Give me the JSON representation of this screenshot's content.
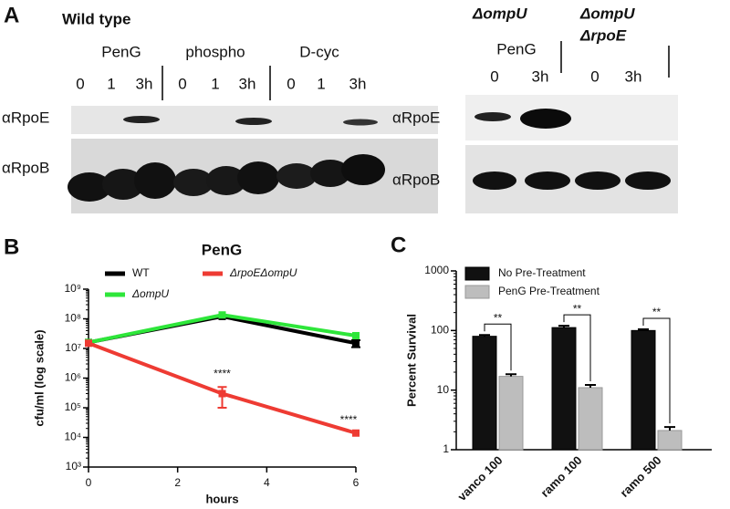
{
  "panel_a": {
    "label": "A",
    "title": "Wild type",
    "treatments": [
      "PenG",
      "phospho",
      "D-cyc"
    ],
    "timepoints": [
      [
        "0",
        "1",
        "3h"
      ],
      [
        "0",
        "1",
        "3h"
      ],
      [
        "0",
        "1",
        "3h"
      ]
    ],
    "rows": [
      "αRpoE",
      "αRpoB"
    ],
    "right_strains": [
      "ΔompU",
      "ΔompU",
      "ΔrpoE"
    ],
    "right_treatment": "PenG",
    "right_timepoints": [
      [
        "0",
        "3h"
      ],
      [
        "0",
        "3h"
      ]
    ],
    "right_rows": [
      "αRpoE",
      "αRpoB"
    ]
  },
  "chart_data": [
    {
      "type": "line",
      "label": "B",
      "title": "PenG",
      "xlabel": "hours",
      "ylabel": "cfu/ml (log scale)",
      "x": [
        0,
        3,
        6
      ],
      "xlim": [
        0,
        6
      ],
      "xticks": [
        0,
        2,
        4,
        6
      ],
      "ylim": [
        1000,
        1000000000
      ],
      "log_y": true,
      "yticks": [
        {
          "value": 1000,
          "label": "10³"
        },
        {
          "value": 10000,
          "label": "10⁴"
        },
        {
          "value": 100000,
          "label": "10⁵"
        },
        {
          "value": 1000000,
          "label": "10⁶"
        },
        {
          "value": 10000000,
          "label": "10⁷"
        },
        {
          "value": 100000000,
          "label": "10⁸"
        },
        {
          "value": 1000000000,
          "label": "10⁹"
        }
      ],
      "series": [
        {
          "name": "WT",
          "color": "#000000",
          "values": [
            16000000,
            120000000,
            15000000
          ],
          "errors": [
            null,
            null,
            4000000
          ]
        },
        {
          "name": "ΔompU",
          "color": "#2ee63a",
          "values": [
            16000000,
            135000000,
            27000000
          ],
          "errors": [
            null,
            null,
            null
          ]
        },
        {
          "name": "ΔrpoEΔompU",
          "color": "#ee3b33",
          "values": [
            15000000,
            300000,
            14000
          ],
          "errors": [
            null,
            200000,
            null
          ]
        }
      ],
      "annotations": [
        {
          "text": "****",
          "x": 3
        },
        {
          "text": "****",
          "x": 6
        }
      ]
    },
    {
      "type": "bar",
      "label": "C",
      "ylabel": "Percent Survival",
      "categories": [
        "vanco 100",
        "ramo 100",
        "ramo 500"
      ],
      "ylim": [
        1,
        1000
      ],
      "log_y": true,
      "yticks": [
        1,
        10,
        100,
        1000
      ],
      "series": [
        {
          "name": "No Pre-Treatment",
          "color": "#111111",
          "values": [
            80,
            112,
            100
          ],
          "errors": [
            4,
            8,
            5
          ]
        },
        {
          "name": "PenG Pre-Treatment",
          "color": "#bdbdbd",
          "values": [
            17,
            11,
            2.1
          ],
          "errors": [
            1.5,
            1.2,
            0.3
          ]
        }
      ],
      "annotations": [
        "**",
        "**",
        "**"
      ]
    }
  ]
}
